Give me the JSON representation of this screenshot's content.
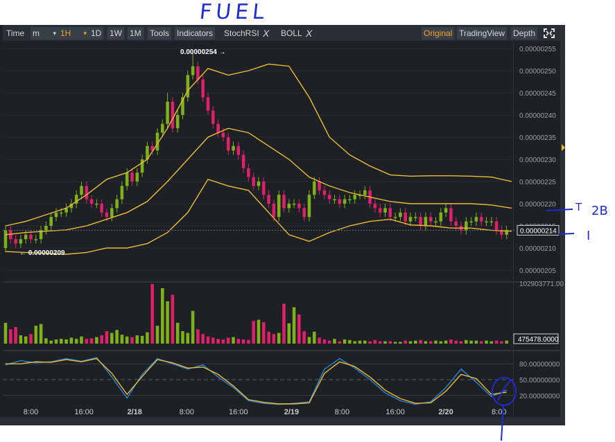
{
  "annotations": {
    "title": "FUEL",
    "note_t": "T",
    "note_2b": "2B",
    "note_i": "I"
  },
  "toolbar": {
    "time": "Time",
    "interval": "m",
    "dropdown": "▾",
    "h1": "1H",
    "d1": "1D",
    "w1": "1W",
    "m1": "1M",
    "tools": "Tools",
    "indicators": "Indicators",
    "stochrsi": "StochRSI",
    "boll": "BOLL",
    "close_x": "X",
    "original": "Original",
    "tradingview": "TradingView",
    "depth": "Depth",
    "fullscreen_icon": "fullscreen-icon"
  },
  "colors": {
    "bull": "#7fb11b",
    "bear": "#e0206a",
    "boll": "#f0bc32",
    "stoch_k": "#2a86d8",
    "stoch_d": "#f0bc32",
    "ink": "#1f2bd1"
  },
  "chart_data": {
    "type": "candlestick",
    "price_ticks": [
      "0.00000255",
      "0.00000250",
      "0.00000245",
      "0.00000240",
      "0.00000235",
      "0.00000230",
      "0.00000225",
      "0.00000220",
      "0.00000215",
      "0.00000210",
      "0.00000205"
    ],
    "price_range": [
      2.032e-06,
      2.563e-06
    ],
    "high_marker": "0.00000254",
    "low_marker": "0.00000209",
    "last_price": "0.00000214",
    "volume_max_label": "102903771.00",
    "last_volume": "475478.0000",
    "stoch_ticks": [
      "80.00000000",
      "50.00000000",
      "20.00000000"
    ],
    "time_labels": [
      "8:00",
      "16:00",
      "2/18",
      "8:00",
      "16:00",
      "2/19",
      "8:00",
      "16:00",
      "2/20",
      "8:00"
    ],
    "candles_t": [
      0,
      0.01,
      0.02,
      0.03,
      0.04,
      0.05,
      0.06,
      0.07,
      0.08,
      0.09,
      0.1,
      0.11,
      0.12,
      0.13,
      0.14,
      0.15,
      0.16,
      0.17,
      0.18,
      0.19,
      0.2,
      0.21,
      0.22,
      0.23,
      0.24,
      0.25,
      0.26,
      0.27,
      0.28,
      0.29,
      0.3,
      0.31,
      0.32,
      0.33,
      0.34,
      0.35,
      0.36,
      0.37,
      0.38,
      0.39,
      0.4,
      0.41,
      0.42,
      0.43,
      0.44,
      0.45,
      0.46,
      0.47,
      0.48,
      0.49,
      0.5,
      0.51,
      0.52,
      0.53,
      0.54,
      0.55,
      0.56,
      0.57,
      0.58,
      0.59,
      0.6,
      0.61,
      0.62,
      0.63,
      0.64,
      0.65,
      0.66,
      0.67,
      0.68,
      0.69,
      0.7,
      0.71,
      0.72,
      0.73,
      0.74,
      0.75,
      0.76,
      0.77,
      0.78,
      0.79,
      0.8,
      0.81,
      0.82,
      0.83,
      0.84,
      0.85,
      0.86,
      0.87,
      0.88,
      0.89,
      0.9,
      0.91,
      0.92,
      0.93,
      0.94,
      0.95,
      0.96,
      0.97,
      0.98,
      0.99
    ],
    "open": [
      2.1,
      2.14,
      2.12,
      2.11,
      2.12,
      2.13,
      2.12,
      2.12,
      2.14,
      2.15,
      2.17,
      2.18,
      2.18,
      2.19,
      2.2,
      2.22,
      2.24,
      2.21,
      2.2,
      2.2,
      2.18,
      2.17,
      2.19,
      2.21,
      2.24,
      2.27,
      2.25,
      2.27,
      2.3,
      2.33,
      2.32,
      2.36,
      2.38,
      2.43,
      2.37,
      2.4,
      2.44,
      2.49,
      2.51,
      2.48,
      2.44,
      2.41,
      2.38,
      2.36,
      2.35,
      2.32,
      2.33,
      2.31,
      2.28,
      2.26,
      2.24,
      2.25,
      2.22,
      2.2,
      2.17,
      2.22,
      2.19,
      2.2,
      2.2,
      2.19,
      2.17,
      2.22,
      2.25,
      2.23,
      2.22,
      2.21,
      2.21,
      2.2,
      2.21,
      2.21,
      2.22,
      2.22,
      2.23,
      2.2,
      2.19,
      2.18,
      2.19,
      2.17,
      2.17,
      2.18,
      2.16,
      2.17,
      2.17,
      2.15,
      2.17,
      2.16,
      2.16,
      2.18,
      2.19,
      2.16,
      2.15,
      2.14,
      2.16,
      2.16,
      2.17,
      2.16,
      2.16,
      2.16,
      2.14,
      2.13
    ],
    "close": [
      2.14,
      2.12,
      2.11,
      2.12,
      2.13,
      2.12,
      2.12,
      2.14,
      2.15,
      2.17,
      2.18,
      2.18,
      2.19,
      2.2,
      2.22,
      2.24,
      2.21,
      2.2,
      2.2,
      2.18,
      2.17,
      2.19,
      2.21,
      2.24,
      2.27,
      2.25,
      2.27,
      2.3,
      2.33,
      2.32,
      2.36,
      2.38,
      2.43,
      2.37,
      2.4,
      2.44,
      2.49,
      2.51,
      2.48,
      2.44,
      2.41,
      2.38,
      2.36,
      2.35,
      2.32,
      2.33,
      2.31,
      2.28,
      2.26,
      2.24,
      2.25,
      2.22,
      2.2,
      2.17,
      2.22,
      2.19,
      2.2,
      2.2,
      2.19,
      2.17,
      2.22,
      2.25,
      2.23,
      2.22,
      2.21,
      2.21,
      2.2,
      2.21,
      2.21,
      2.22,
      2.22,
      2.23,
      2.2,
      2.19,
      2.18,
      2.19,
      2.17,
      2.17,
      2.18,
      2.16,
      2.17,
      2.17,
      2.15,
      2.17,
      2.16,
      2.16,
      2.18,
      2.19,
      2.16,
      2.15,
      2.14,
      2.16,
      2.16,
      2.17,
      2.16,
      2.16,
      2.16,
      2.14,
      2.13,
      2.14
    ],
    "high": [
      2.15,
      2.15,
      2.13,
      2.13,
      2.14,
      2.14,
      2.13,
      2.15,
      2.16,
      2.18,
      2.19,
      2.19,
      2.2,
      2.21,
      2.23,
      2.25,
      2.25,
      2.22,
      2.21,
      2.21,
      2.19,
      2.2,
      2.22,
      2.25,
      2.28,
      2.28,
      2.28,
      2.31,
      2.34,
      2.34,
      2.37,
      2.39,
      2.45,
      2.44,
      2.41,
      2.45,
      2.5,
      2.54,
      2.52,
      2.49,
      2.45,
      2.42,
      2.39,
      2.37,
      2.36,
      2.34,
      2.34,
      2.32,
      2.29,
      2.27,
      2.26,
      2.26,
      2.23,
      2.21,
      2.23,
      2.23,
      2.21,
      2.21,
      2.21,
      2.2,
      2.23,
      2.26,
      2.26,
      2.24,
      2.23,
      2.22,
      2.22,
      2.22,
      2.22,
      2.23,
      2.23,
      2.24,
      2.24,
      2.21,
      2.2,
      2.2,
      2.2,
      2.18,
      2.19,
      2.19,
      2.18,
      2.18,
      2.18,
      2.18,
      2.18,
      2.17,
      2.19,
      2.2,
      2.2,
      2.17,
      2.16,
      2.17,
      2.17,
      2.18,
      2.18,
      2.17,
      2.17,
      2.17,
      2.15,
      2.15
    ],
    "low": [
      2.09,
      2.11,
      2.1,
      2.1,
      2.11,
      2.11,
      2.11,
      2.11,
      2.13,
      2.14,
      2.16,
      2.17,
      2.17,
      2.18,
      2.19,
      2.21,
      2.2,
      2.19,
      2.19,
      2.17,
      2.16,
      2.16,
      2.18,
      2.2,
      2.23,
      2.24,
      2.24,
      2.26,
      2.29,
      2.31,
      2.31,
      2.35,
      2.37,
      2.36,
      2.36,
      2.39,
      2.43,
      2.48,
      2.47,
      2.43,
      2.4,
      2.37,
      2.35,
      2.34,
      2.31,
      2.31,
      2.3,
      2.27,
      2.25,
      2.23,
      2.23,
      2.21,
      2.19,
      2.16,
      2.16,
      2.18,
      2.18,
      2.19,
      2.18,
      2.16,
      2.16,
      2.21,
      2.22,
      2.21,
      2.2,
      2.2,
      2.19,
      2.19,
      2.2,
      2.2,
      2.21,
      2.21,
      2.19,
      2.18,
      2.17,
      2.17,
      2.16,
      2.16,
      2.16,
      2.15,
      2.15,
      2.16,
      2.14,
      2.14,
      2.15,
      2.15,
      2.15,
      2.17,
      2.15,
      2.14,
      2.13,
      2.13,
      2.15,
      2.15,
      2.15,
      2.15,
      2.15,
      2.13,
      2.12,
      2.12
    ],
    "volume": [
      0.35,
      0.24,
      0.28,
      0.14,
      0.12,
      0.16,
      0.3,
      0.33,
      0.09,
      0.05,
      0.07,
      0.08,
      0.07,
      0.1,
      0.08,
      0.12,
      0.08,
      0.09,
      0.11,
      0.14,
      0.21,
      0.18,
      0.23,
      0.15,
      0.12,
      0.11,
      0.14,
      0.13,
      0.19,
      1.0,
      0.3,
      0.93,
      0.71,
      0.82,
      0.35,
      0.21,
      0.18,
      0.55,
      0.24,
      0.16,
      0.12,
      0.1,
      0.08,
      0.07,
      0.1,
      0.11,
      0.08,
      0.07,
      0.06,
      0.38,
      0.4,
      0.36,
      0.2,
      0.16,
      0.18,
      0.67,
      0.34,
      0.61,
      0.49,
      0.21,
      0.11,
      0.2,
      0.1,
      0.07,
      0.05,
      0.08,
      0.04,
      0.07,
      0.06,
      0.04,
      0.05,
      0.05,
      0.04,
      0.06,
      0.04,
      0.04,
      0.04,
      0.03,
      0.03,
      0.05,
      0.04,
      0.05,
      0.06,
      0.04,
      0.04,
      0.05,
      0.04,
      0.05,
      0.07,
      0.05,
      0.04,
      0.06,
      0.05,
      0.05,
      0.04,
      0.05,
      0.04,
      0.05,
      0.04,
      0.05
    ],
    "boll_t": [
      0,
      0.04,
      0.08,
      0.12,
      0.16,
      0.2,
      0.24,
      0.28,
      0.32,
      0.36,
      0.4,
      0.44,
      0.48,
      0.52,
      0.56,
      0.6,
      0.64,
      0.68,
      0.72,
      0.76,
      0.8,
      0.84,
      0.88,
      0.92,
      0.96,
      1.0
    ],
    "boll_upper": [
      2.15,
      2.16,
      2.175,
      2.19,
      2.22,
      2.255,
      2.27,
      2.3,
      2.37,
      2.455,
      2.505,
      2.49,
      2.5,
      2.515,
      2.51,
      2.44,
      2.35,
      2.31,
      2.285,
      2.265,
      2.262,
      2.263,
      2.263,
      2.262,
      2.26,
      2.25
    ],
    "boll_mid": [
      2.13,
      2.135,
      2.138,
      2.141,
      2.15,
      2.165,
      2.18,
      2.205,
      2.25,
      2.3,
      2.35,
      2.37,
      2.36,
      2.33,
      2.3,
      2.26,
      2.24,
      2.225,
      2.215,
      2.205,
      2.2,
      2.2,
      2.2,
      2.2,
      2.197,
      2.19
    ],
    "boll_lower": [
      2.092,
      2.09,
      2.088,
      2.086,
      2.09,
      2.1,
      2.1,
      2.11,
      2.135,
      2.18,
      2.255,
      2.24,
      2.23,
      2.18,
      2.13,
      2.115,
      2.135,
      2.15,
      2.16,
      2.165,
      2.152,
      2.15,
      2.145,
      2.145,
      2.14,
      2.138
    ],
    "stoch_t": [
      0,
      0.03,
      0.06,
      0.09,
      0.12,
      0.15,
      0.18,
      0.21,
      0.24,
      0.27,
      0.3,
      0.33,
      0.36,
      0.39,
      0.42,
      0.45,
      0.48,
      0.51,
      0.54,
      0.57,
      0.6,
      0.63,
      0.66,
      0.69,
      0.72,
      0.75,
      0.78,
      0.81,
      0.84,
      0.87,
      0.9,
      0.93,
      0.96,
      0.99
    ],
    "stoch_k": [
      78,
      86,
      82,
      84,
      90,
      85,
      92,
      55,
      15,
      60,
      90,
      80,
      70,
      78,
      55,
      35,
      10,
      5,
      3,
      5,
      8,
      70,
      90,
      72,
      50,
      25,
      10,
      3,
      8,
      35,
      70,
      45,
      18,
      30
    ],
    "stoch_d": [
      80,
      80,
      84,
      83,
      88,
      84,
      90,
      62,
      22,
      56,
      88,
      82,
      72,
      74,
      60,
      38,
      12,
      7,
      4,
      4,
      6,
      62,
      84,
      75,
      55,
      30,
      14,
      5,
      6,
      28,
      60,
      52,
      22,
      26
    ]
  }
}
